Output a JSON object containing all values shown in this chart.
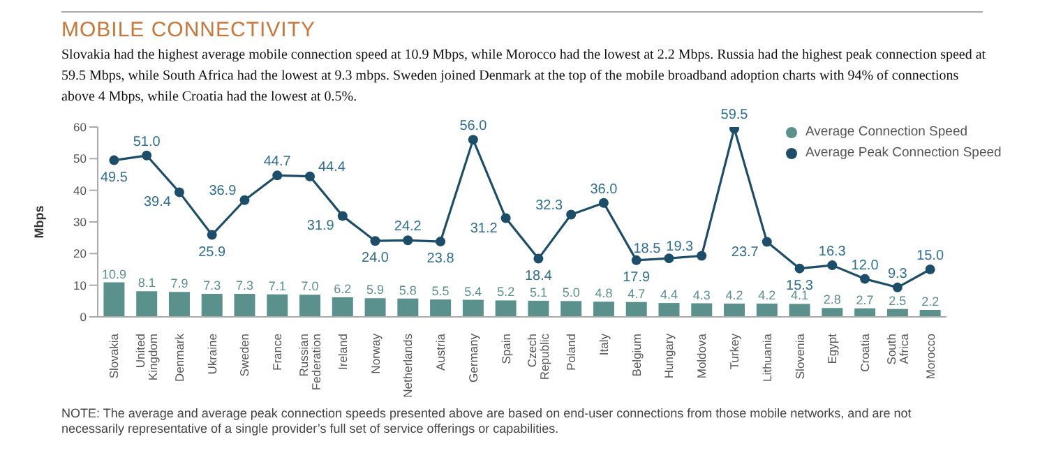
{
  "chart_data": {
    "type": "bar",
    "title": "MOBILE CONNECTIVITY",
    "subtitle": "Slovakia had the highest average mobile connection speed at 10.9 Mbps, while Morocco had the lowest at 2.2 Mbps. Russia had the highest peak connection speed at 59.5 Mbps, while South Africa had the lowest at 9.3 mbps. Sweden joined Denmark at the top of the mobile broadband adoption charts with 94% of connections above 4 Mbps, while Croatia had the lowest at 0.5%.",
    "ylabel": "Mbps",
    "categories": [
      "Slovakia",
      "United Kingdom",
      "Denmark",
      "Ukraine",
      "Sweden",
      "France",
      "Russian Federation",
      "Ireland",
      "Norway",
      "Netherlands",
      "Austria",
      "Germany",
      "Spain",
      "Czech Republic",
      "Poland",
      "Italy",
      "Belgium",
      "Hungary",
      "Moldova",
      "Turkey",
      "Lithuania",
      "Slovenia",
      "Egypt",
      "Croatia",
      "South Africa",
      "Morocco"
    ],
    "series": [
      {
        "name": "Average Connection Speed",
        "color": "#5b918d",
        "values": [
          10.9,
          8.1,
          7.9,
          7.3,
          7.3,
          7.1,
          7.0,
          6.2,
          5.9,
          5.8,
          5.5,
          5.4,
          5.2,
          5.1,
          5.0,
          4.8,
          4.7,
          4.4,
          4.3,
          4.2,
          4.2,
          4.1,
          2.8,
          2.7,
          2.5,
          2.2
        ],
        "value_labels": [
          "10.9",
          "8.1",
          "7.9",
          "7.3",
          "7.3",
          "7.1",
          "7.0",
          "6.2",
          "5.9",
          "5.8",
          "5.5",
          "5.4",
          "5.2",
          "5.1",
          "5.0",
          "4.8",
          "4.7",
          "4.4",
          "4.3",
          "4.2",
          "4.2",
          "4.1",
          "2.8",
          "2.7",
          "2.5",
          "2.2"
        ]
      },
      {
        "name": "Average Peak Connection Speed",
        "type": "line",
        "color": "#1d4e69",
        "values": [
          49.5,
          51.0,
          39.4,
          25.9,
          36.9,
          44.7,
          44.4,
          31.9,
          24.0,
          24.2,
          23.8,
          56.0,
          31.2,
          18.4,
          32.3,
          36.0,
          17.9,
          18.5,
          19.3,
          59.5,
          23.7,
          15.3,
          16.3,
          12.0,
          9.3,
          15.0
        ],
        "value_labels": [
          "49.5",
          "51.0",
          "39.4",
          "25.9",
          "36.9",
          "44.7",
          "44.4",
          "31.9",
          "24.0",
          "24.2",
          "23.8",
          "56.0",
          "31.2",
          "18.4",
          "32.3",
          "36.0",
          "17.9",
          "18.5",
          "19.3",
          "59.5",
          "23.7",
          "15.3",
          "16.3",
          "12.0",
          "9.3",
          "15.0"
        ]
      }
    ],
    "ylim": [
      0,
      60
    ],
    "yticks": [
      0,
      10,
      20,
      30,
      40,
      50,
      60
    ],
    "grid": false,
    "legend": "top right",
    "marker": "circle",
    "annotations": [
      "NOTE: The average and average peak connection speeds presented above are based on end-user connections from those mobile networks, and are not necessarily representative of a single provider’s full set of service offerings or capabilities."
    ]
  }
}
